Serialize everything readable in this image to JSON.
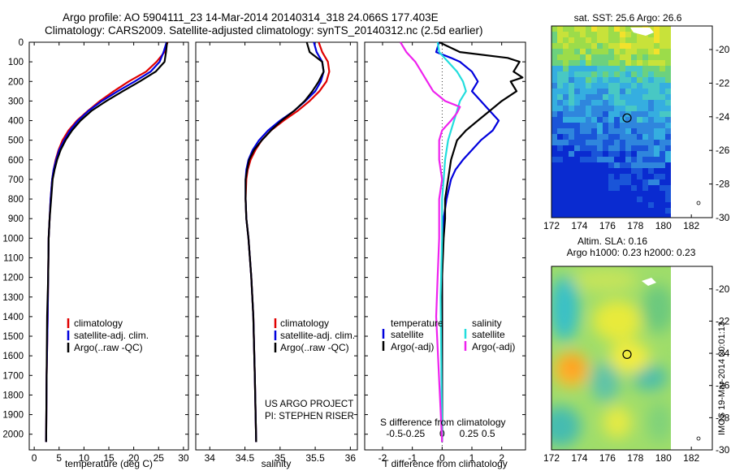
{
  "header": {
    "line1": "Argo profile: AO 5904111_23 14-Mar-2014 20140314_318 24.066S 177.403E",
    "line2": "Climatology: CARS2009. Satellite-adjusted climatology: synTS_20140312.nc (2.5d earlier)"
  },
  "colors": {
    "climatology": "#e00000",
    "satellite": "#0000dd",
    "argo": "#000000",
    "salinity_sat": "#22dddd",
    "salinity_argo": "#ee22ee"
  },
  "chart_data": [
    {
      "type": "line",
      "xlabel": "temperature (deg C)",
      "xlim": [
        -1,
        31
      ],
      "xticks": [
        0,
        5,
        10,
        15,
        20,
        25,
        30
      ],
      "ylim": [
        2080,
        0
      ],
      "yticks": [
        0,
        100,
        200,
        300,
        400,
        500,
        600,
        700,
        800,
        900,
        1000,
        1100,
        1200,
        1300,
        1400,
        1500,
        1600,
        1700,
        1800,
        1900,
        2000
      ],
      "legend": [
        "climatology",
        "satellite-adj. clim.",
        "Argo(..raw -QC)"
      ],
      "legend_placement": "center",
      "series": [
        {
          "name": "climatology",
          "color": "#e00000",
          "x": [
            26.8,
            26.2,
            24.6,
            22.5,
            19.0,
            16.0,
            13.2,
            10.8,
            8.6,
            6.9,
            5.7,
            4.9,
            4.3,
            3.9,
            3.6,
            3.3,
            3.1,
            2.9,
            2.8,
            2.7,
            2.5,
            2.4
          ],
          "y": [
            0,
            50,
            100,
            150,
            200,
            250,
            300,
            350,
            400,
            450,
            500,
            550,
            600,
            650,
            700,
            800,
            900,
            1000,
            1200,
            1400,
            1700,
            2040
          ]
        },
        {
          "name": "satellite-adj. clim.",
          "color": "#0000dd",
          "x": [
            26.6,
            26.0,
            25.2,
            23.4,
            20.2,
            16.8,
            13.6,
            10.9,
            8.8,
            7.2,
            6.0,
            5.0,
            4.4,
            3.9,
            3.6,
            3.3,
            3.1,
            2.9,
            2.8,
            2.7,
            2.5,
            2.4
          ],
          "y": [
            0,
            50,
            100,
            150,
            200,
            250,
            300,
            350,
            400,
            450,
            500,
            550,
            600,
            650,
            700,
            800,
            900,
            1000,
            1200,
            1400,
            1700,
            2040
          ]
        },
        {
          "name": "Argo(..raw -QC)",
          "color": "#000000",
          "x": [
            26.7,
            26.5,
            26.2,
            24.4,
            21.2,
            17.8,
            14.5,
            11.5,
            9.3,
            7.6,
            6.3,
            5.3,
            4.6,
            4.1,
            3.7,
            3.4,
            3.1,
            2.9,
            2.8,
            2.6,
            2.5,
            2.4
          ],
          "y": [
            0,
            50,
            100,
            150,
            200,
            250,
            300,
            350,
            400,
            450,
            500,
            550,
            600,
            650,
            700,
            800,
            900,
            1000,
            1200,
            1400,
            1700,
            2040
          ]
        }
      ]
    },
    {
      "type": "line",
      "xlabel": "salinity",
      "xlim": [
        33.8,
        36.1
      ],
      "xticks": [
        34,
        34.5,
        35,
        35.5,
        36
      ],
      "ylim": [
        2080,
        0
      ],
      "legend": [
        "climatology",
        "satellite-adj. clim.",
        "Argo(..raw -QC)"
      ],
      "legend_placement": "center",
      "annotations": [
        "US ARGO PROJECT",
        "PI: STEPHEN RISER"
      ],
      "series": [
        {
          "name": "climatology",
          "color": "#e00000",
          "x": [
            35.55,
            35.6,
            35.68,
            35.7,
            35.66,
            35.56,
            35.42,
            35.25,
            35.05,
            34.87,
            34.74,
            34.65,
            34.58,
            34.54,
            34.52,
            34.51,
            34.52,
            34.55,
            34.59,
            34.62,
            34.64,
            34.66
          ],
          "y": [
            0,
            50,
            100,
            150,
            200,
            250,
            300,
            350,
            400,
            450,
            500,
            550,
            600,
            650,
            700,
            800,
            900,
            1000,
            1200,
            1400,
            1700,
            2040
          ]
        },
        {
          "name": "satellite-adj. clim.",
          "color": "#0000dd",
          "x": [
            35.48,
            35.52,
            35.6,
            35.62,
            35.58,
            35.5,
            35.36,
            35.2,
            35.0,
            34.83,
            34.7,
            34.61,
            34.55,
            34.52,
            34.51,
            34.51,
            34.52,
            34.55,
            34.59,
            34.62,
            34.64,
            34.66
          ],
          "y": [
            0,
            50,
            100,
            150,
            200,
            250,
            300,
            350,
            400,
            450,
            500,
            550,
            600,
            650,
            700,
            800,
            900,
            1000,
            1200,
            1400,
            1700,
            2040
          ]
        },
        {
          "name": "Argo(..raw -QC)",
          "color": "#000000",
          "x": [
            35.38,
            35.42,
            35.6,
            35.62,
            35.55,
            35.46,
            35.35,
            35.2,
            35.02,
            34.87,
            34.74,
            34.63,
            34.56,
            34.53,
            34.51,
            34.51,
            34.52,
            34.55,
            34.59,
            34.62,
            34.64,
            34.66
          ],
          "y": [
            0,
            50,
            100,
            150,
            200,
            250,
            300,
            350,
            400,
            450,
            500,
            550,
            600,
            650,
            700,
            800,
            900,
            1000,
            1200,
            1400,
            1700,
            2040
          ]
        }
      ]
    },
    {
      "type": "line",
      "xlabel": "T difference from climatology",
      "xlabel_top": "S difference from climatology",
      "xlim": [
        -2.6,
        2.8
      ],
      "xticks": [
        -2,
        -1,
        0,
        1,
        2
      ],
      "xticks_top": [
        "-0.5",
        "-0.25",
        "0",
        "0.25",
        "0.5"
      ],
      "ylim": [
        2080,
        0
      ],
      "legend": [
        "temperature",
        "satellite",
        "Argo(-adj)",
        "salinity",
        "satellite",
        "Argo(-adj)"
      ],
      "legend_placement": "center",
      "series": [
        {
          "name": "satellite",
          "group": "temperature",
          "color": "#0000dd",
          "x": [
            -0.1,
            -0.2,
            0.3,
            0.6,
            1.0,
            1.2,
            1.0,
            1.3,
            1.6,
            1.9,
            1.7,
            1.3,
            1.0,
            0.7,
            0.45,
            0.3,
            0.15,
            0.05,
            0.02,
            0.0,
            0.0,
            0.0
          ],
          "y": [
            0,
            50,
            80,
            100,
            150,
            200,
            250,
            300,
            350,
            400,
            450,
            500,
            550,
            600,
            650,
            700,
            800,
            900,
            1000,
            1200,
            1600,
            2040
          ]
        },
        {
          "name": "Argo(-adj)",
          "group": "temperature",
          "color": "#000000",
          "x": [
            -0.1,
            0.6,
            2.2,
            2.6,
            2.4,
            2.7,
            2.3,
            2.5,
            2.0,
            1.6,
            1.2,
            0.8,
            0.5,
            0.3,
            0.2,
            0.1,
            0.1,
            0.05,
            0.0,
            0.0
          ],
          "y": [
            0,
            50,
            80,
            100,
            150,
            180,
            200,
            250,
            300,
            350,
            400,
            450,
            500,
            600,
            700,
            800,
            900,
            1000,
            1200,
            2040
          ]
        },
        {
          "name": "satellite",
          "group": "salinity",
          "color": "#22dddd",
          "x": [
            -0.15,
            -0.1,
            0.2,
            0.5,
            0.7,
            0.8,
            0.6,
            0.5,
            0.4,
            0.3,
            0.2,
            0.1,
            0.05,
            0.0,
            0.0,
            -0.05,
            0.0
          ],
          "y": [
            0,
            50,
            100,
            150,
            200,
            250,
            300,
            350,
            400,
            450,
            500,
            600,
            700,
            800,
            1000,
            1300,
            2040
          ]
        },
        {
          "name": "Argo(-adj)",
          "group": "salinity",
          "color": "#ee22ee",
          "x": [
            -1.4,
            -1.2,
            -0.9,
            -0.7,
            -0.5,
            -0.3,
            0.1,
            0.6,
            0.5,
            0.3,
            0.0,
            -0.1,
            -0.1,
            0.0,
            -0.1,
            -0.1,
            -0.15,
            -0.2,
            0.0
          ],
          "y": [
            0,
            50,
            100,
            150,
            200,
            250,
            300,
            330,
            360,
            400,
            450,
            500,
            600,
            700,
            800,
            1000,
            1200,
            1400,
            2040
          ]
        }
      ]
    },
    {
      "type": "heatmap",
      "title": "sat. SST: 25.6  Argo: 26.6",
      "xlim": [
        172,
        183.5
      ],
      "ylim": [
        -30,
        -18.6
      ],
      "xticks": [
        172,
        174,
        176,
        178,
        180,
        182
      ],
      "yticks": [
        -20,
        -22,
        -24,
        -26,
        -28,
        -30
      ],
      "marker": {
        "lon": 177.403,
        "lat": -24.066
      }
    },
    {
      "type": "heatmap",
      "title": "Altim. SLA: 0.16",
      "subtitle": "Argo h1000: 0.23 h2000: 0.23",
      "xlim": [
        172,
        183.5
      ],
      "ylim": [
        -30,
        -18.6
      ],
      "xticks": [
        172,
        174,
        176,
        178,
        180,
        182
      ],
      "yticks": [
        -20,
        -22,
        -24,
        -26,
        -28,
        -30
      ],
      "marker": {
        "lon": 177.403,
        "lat": -24.066
      }
    }
  ],
  "side_text": "IMOS 19-Mar-2014 20:01:13"
}
